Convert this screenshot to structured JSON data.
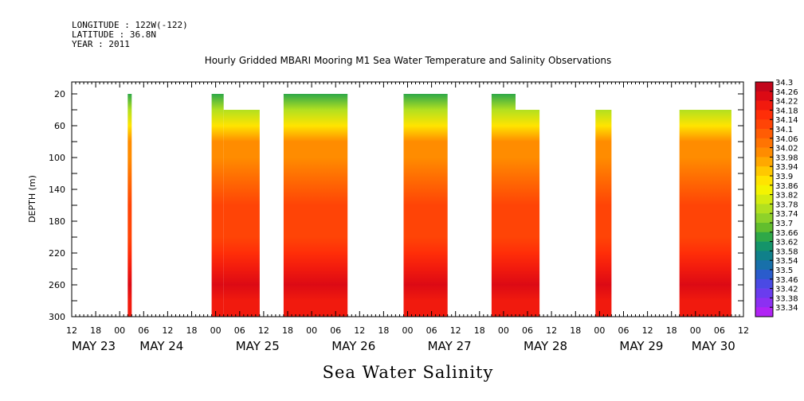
{
  "header": {
    "longitude": "LONGITUDE : 122W(-122)",
    "latitude": "LATITUDE : 36.8N",
    "year": "YEAR : 2011"
  },
  "chart_data": {
    "type": "heatmap",
    "title": "Hourly Gridded MBARI Mooring M1 Sea Water Temperature and Salinity Observations",
    "caption": "Sea Water Salinity",
    "ylabel": "DEPTH (m)",
    "xlabel": "",
    "y_axis": {
      "inverted": true,
      "ylim": [
        300,
        5
      ],
      "ticks": [
        20,
        60,
        100,
        140,
        180,
        220,
        260,
        300
      ]
    },
    "x_axis": {
      "unit": "hours since May 23 12:00",
      "xlim": [
        0,
        168
      ],
      "tick_hours": [
        0,
        6,
        12,
        18,
        24,
        30,
        36,
        42,
        48,
        54,
        60,
        66,
        72,
        78,
        84,
        90,
        96,
        102,
        108,
        114,
        120,
        126,
        132,
        138,
        144,
        150,
        156,
        162,
        168
      ],
      "tick_labels": [
        "12",
        "18",
        "00",
        "06",
        "12",
        "18",
        "00",
        "06",
        "12",
        "18",
        "00",
        "06",
        "12",
        "18",
        "00",
        "06",
        "12",
        "18",
        "00",
        "06",
        "12",
        "18",
        "00",
        "06",
        "12",
        "18",
        "00",
        "06",
        "12"
      ],
      "day_labels": [
        {
          "label": "MAY 23",
          "hour": 0
        },
        {
          "label": "MAY 24",
          "hour": 17
        },
        {
          "label": "MAY 25",
          "hour": 41
        },
        {
          "label": "MAY 26",
          "hour": 65
        },
        {
          "label": "MAY 27",
          "hour": 89
        },
        {
          "label": "MAY 28",
          "hour": 113
        },
        {
          "label": "MAY 29",
          "hour": 137
        },
        {
          "label": "MAY 30",
          "hour": 155
        }
      ]
    },
    "colorbar": {
      "labels": [
        "34.3",
        "34.26",
        "34.22",
        "34.18",
        "34.14",
        "34.1",
        "34.06",
        "34.02",
        "33.98",
        "33.94",
        "33.9",
        "33.86",
        "33.82",
        "33.78",
        "33.74",
        "33.7",
        "33.66",
        "33.62",
        "33.58",
        "33.54",
        "33.5",
        "33.46",
        "33.42",
        "33.38",
        "33.34"
      ],
      "colors": [
        "#c2061c",
        "#dc0a14",
        "#f11a0e",
        "#ff2e08",
        "#ff4406",
        "#ff5c04",
        "#ff7402",
        "#ff8c00",
        "#ffa800",
        "#ffc800",
        "#ffe400",
        "#f4f400",
        "#d4ec10",
        "#b2e020",
        "#8ed22a",
        "#62be2e",
        "#2ea848",
        "#14946a",
        "#10808a",
        "#1870aa",
        "#2a5ccc",
        "#4a4ae4",
        "#6a3cee",
        "#8c30f2",
        "#b024f4"
      ]
    },
    "observations": [
      {
        "start": 14,
        "end": 15,
        "top_depth": 20
      },
      {
        "start": 35,
        "end": 38,
        "top_depth": 20
      },
      {
        "start": 38,
        "end": 47,
        "top_depth": 40
      },
      {
        "start": 53,
        "end": 69,
        "top_depth": 20
      },
      {
        "start": 83,
        "end": 94,
        "top_depth": 20
      },
      {
        "start": 105,
        "end": 111,
        "top_depth": 20
      },
      {
        "start": 111,
        "end": 117,
        "top_depth": 40
      },
      {
        "start": 131,
        "end": 135,
        "top_depth": 40
      },
      {
        "start": 152,
        "end": 165,
        "top_depth": 40
      }
    ],
    "depth_profile": [
      {
        "depth": 20,
        "value": 33.66
      },
      {
        "depth": 40,
        "value": 33.8
      },
      {
        "depth": 60,
        "value": 33.9
      },
      {
        "depth": 80,
        "value": 34.0
      },
      {
        "depth": 100,
        "value": 34.0
      },
      {
        "depth": 120,
        "value": 34.06
      },
      {
        "depth": 140,
        "value": 34.12
      },
      {
        "depth": 160,
        "value": 34.15
      },
      {
        "depth": 180,
        "value": 34.15
      },
      {
        "depth": 200,
        "value": 34.16
      },
      {
        "depth": 220,
        "value": 34.19
      },
      {
        "depth": 240,
        "value": 34.22
      },
      {
        "depth": 260,
        "value": 34.25
      },
      {
        "depth": 280,
        "value": 34.22
      },
      {
        "depth": 300,
        "value": 34.2
      }
    ]
  }
}
